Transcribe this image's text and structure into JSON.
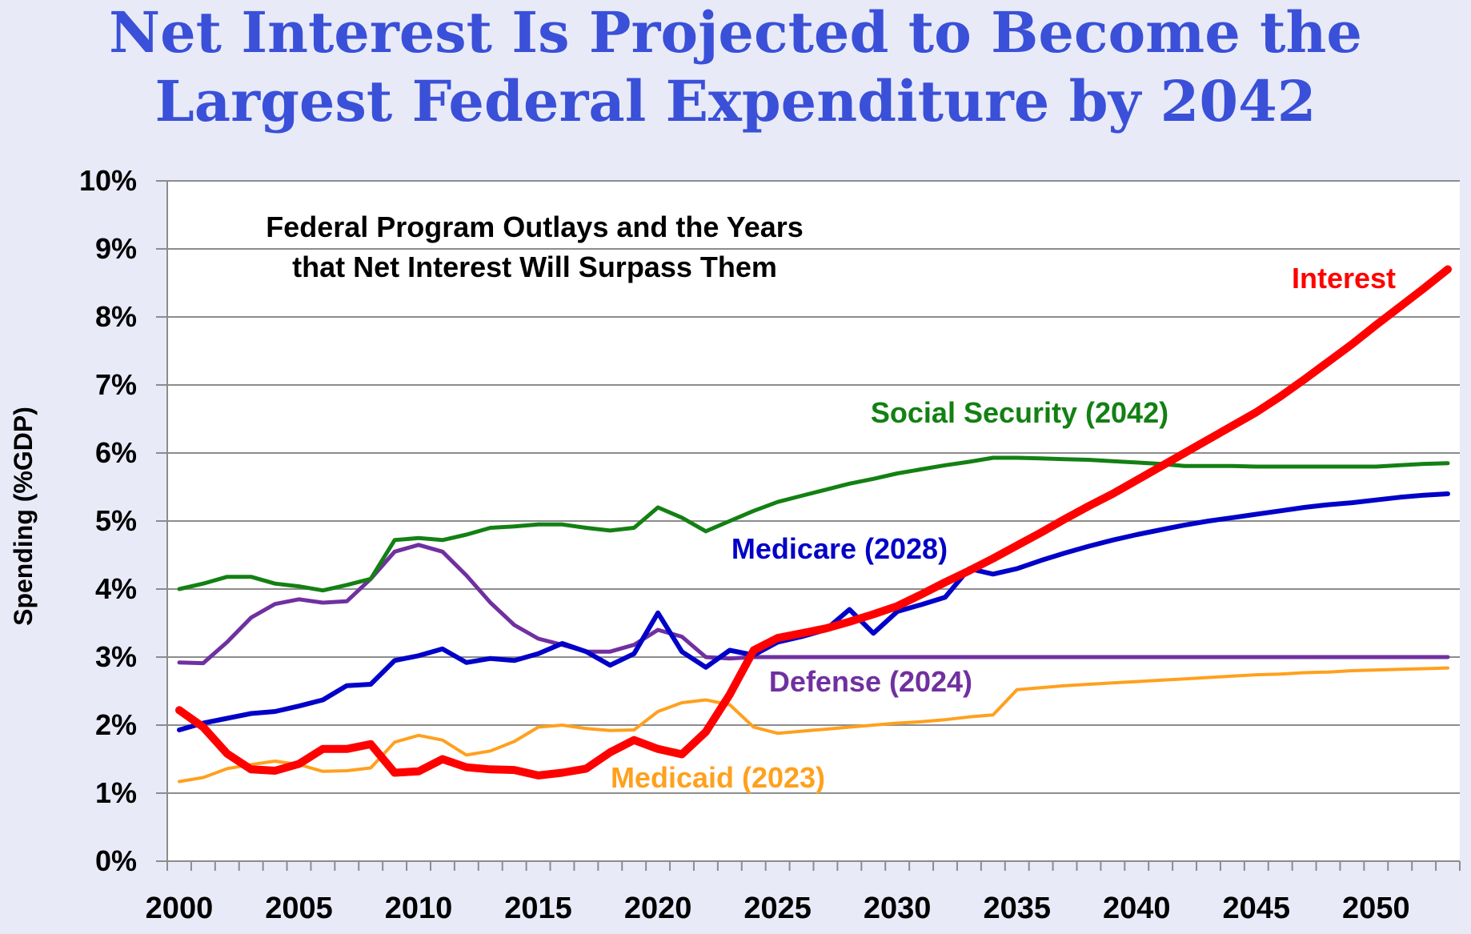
{
  "title": [
    "Net Interest Is Projected to Become the",
    "Largest Federal Expenditure by 2042"
  ],
  "chart_data": {
    "type": "line",
    "title": "Net Interest Is Projected to Become the Largest Federal Expenditure by 2042",
    "annotation": [
      "Federal Program Outlays and the Years",
      "that Net Interest Will Surpass Them"
    ],
    "xlabel": "",
    "ylabel": "Spending (%GDP)",
    "ylim": [
      0,
      10
    ],
    "yticks": [
      "0%",
      "1%",
      "2%",
      "3%",
      "4%",
      "5%",
      "6%",
      "7%",
      "8%",
      "9%",
      "10%"
    ],
    "xticks": [
      "2000",
      "2005",
      "2010",
      "2015",
      "2020",
      "2025",
      "2030",
      "2035",
      "2040",
      "2045",
      "2050"
    ],
    "x_start": 2000,
    "x_end": 2053,
    "grid": true,
    "legend": "inline labels",
    "series": [
      {
        "name": "Social Security",
        "label": "Social Security (2042)",
        "color": "#138013",
        "width": 5,
        "values": [
          4.0,
          4.08,
          4.18,
          4.18,
          4.08,
          4.04,
          3.98,
          4.06,
          4.15,
          4.72,
          4.75,
          4.72,
          4.8,
          4.9,
          4.92,
          4.95,
          4.95,
          4.9,
          4.86,
          4.9,
          5.2,
          5.05,
          4.85,
          5.0,
          5.15,
          5.28,
          5.37,
          5.46,
          5.55,
          5.62,
          5.7,
          5.76,
          5.82,
          5.87,
          5.93,
          5.93,
          5.92,
          5.91,
          5.9,
          5.88,
          5.86,
          5.84,
          5.81,
          5.81,
          5.81,
          5.8,
          5.8,
          5.8,
          5.8,
          5.8,
          5.8,
          5.82,
          5.84,
          5.85
        ]
      },
      {
        "name": "Medicare",
        "label": "Medicare (2028)",
        "color": "#0000c8",
        "width": 6,
        "values": [
          1.93,
          2.03,
          2.1,
          2.17,
          2.2,
          2.28,
          2.37,
          2.58,
          2.6,
          2.95,
          3.02,
          3.12,
          2.92,
          2.98,
          2.95,
          3.05,
          3.2,
          3.08,
          2.88,
          3.05,
          3.65,
          3.08,
          2.85,
          3.1,
          3.03,
          3.22,
          3.3,
          3.4,
          3.7,
          3.35,
          3.67,
          3.77,
          3.88,
          4.3,
          4.22,
          4.3,
          4.42,
          4.53,
          4.63,
          4.72,
          4.8,
          4.87,
          4.94,
          5.0,
          5.05,
          5.1,
          5.15,
          5.2,
          5.24,
          5.27,
          5.31,
          5.35,
          5.38,
          5.4
        ]
      },
      {
        "name": "Defense",
        "label": "Defense (2024)",
        "color": "#7030a0",
        "width": 5,
        "values": [
          2.92,
          2.91,
          3.22,
          3.58,
          3.78,
          3.85,
          3.8,
          3.82,
          4.15,
          4.55,
          4.65,
          4.55,
          4.2,
          3.8,
          3.47,
          3.27,
          3.18,
          3.08,
          3.08,
          3.18,
          3.4,
          3.3,
          3.0,
          2.98,
          3.0,
          3.0,
          3.0,
          3.0,
          3.0,
          3.0,
          3.0,
          3.0,
          3.0,
          3.0,
          3.0,
          3.0,
          3.0,
          3.0,
          3.0,
          3.0,
          3.0,
          3.0,
          3.0,
          3.0,
          3.0,
          3.0,
          3.0,
          3.0,
          3.0,
          3.0,
          3.0,
          3.0,
          3.0,
          3.0
        ]
      },
      {
        "name": "Medicaid",
        "label": "Medicaid (2023)",
        "color": "#ffa01e",
        "width": 4,
        "values": [
          1.17,
          1.23,
          1.36,
          1.42,
          1.47,
          1.42,
          1.32,
          1.33,
          1.37,
          1.75,
          1.85,
          1.78,
          1.56,
          1.62,
          1.76,
          1.97,
          2.0,
          1.95,
          1.92,
          1.93,
          2.2,
          2.33,
          2.37,
          2.3,
          1.97,
          1.88,
          1.91,
          1.94,
          1.97,
          2.0,
          2.03,
          2.05,
          2.08,
          2.12,
          2.15,
          2.52,
          2.55,
          2.58,
          2.6,
          2.62,
          2.64,
          2.66,
          2.68,
          2.7,
          2.72,
          2.74,
          2.75,
          2.77,
          2.78,
          2.8,
          2.81,
          2.82,
          2.83,
          2.84
        ]
      },
      {
        "name": "Interest",
        "label": "Interest",
        "color": "#ff0000",
        "width": 10,
        "values": [
          2.22,
          1.97,
          1.58,
          1.35,
          1.33,
          1.43,
          1.65,
          1.65,
          1.72,
          1.3,
          1.32,
          1.5,
          1.38,
          1.35,
          1.34,
          1.26,
          1.3,
          1.36,
          1.6,
          1.78,
          1.65,
          1.57,
          1.9,
          2.45,
          3.1,
          3.28,
          3.35,
          3.42,
          3.52,
          3.63,
          3.75,
          3.92,
          4.1,
          4.27,
          4.45,
          4.64,
          4.83,
          5.03,
          5.22,
          5.4,
          5.6,
          5.8,
          6.0,
          6.2,
          6.4,
          6.6,
          6.83,
          7.08,
          7.34,
          7.6,
          7.88,
          8.15,
          8.42,
          8.7
        ]
      }
    ]
  }
}
